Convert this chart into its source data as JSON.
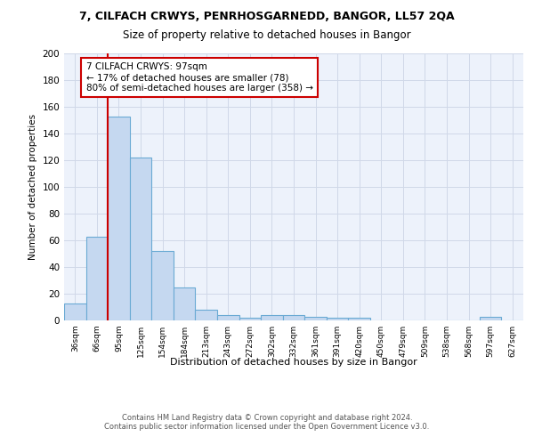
{
  "title1": "7, CILFACH CRWYS, PENRHOSGARNEDD, BANGOR, LL57 2QA",
  "title2": "Size of property relative to detached houses in Bangor",
  "xlabel": "Distribution of detached houses by size in Bangor",
  "ylabel": "Number of detached properties",
  "bin_labels": [
    "36sqm",
    "66sqm",
    "95sqm",
    "125sqm",
    "154sqm",
    "184sqm",
    "213sqm",
    "243sqm",
    "272sqm",
    "302sqm",
    "332sqm",
    "361sqm",
    "391sqm",
    "420sqm",
    "450sqm",
    "479sqm",
    "509sqm",
    "538sqm",
    "568sqm",
    "597sqm",
    "627sqm"
  ],
  "bin_values": [
    13,
    63,
    153,
    122,
    52,
    25,
    8,
    4,
    2,
    4,
    4,
    3,
    2,
    2,
    0,
    0,
    0,
    0,
    0,
    3,
    0
  ],
  "bar_color": "#c5d8f0",
  "bar_edge_color": "#6aaad4",
  "red_line_index": 2,
  "annotation_text": "7 CILFACH CRWYS: 97sqm\n← 17% of detached houses are smaller (78)\n80% of semi-detached houses are larger (358) →",
  "annotation_box_color": "white",
  "annotation_box_edge_color": "#cc0000",
  "footer": "Contains HM Land Registry data © Crown copyright and database right 2024.\nContains public sector information licensed under the Open Government Licence v3.0.",
  "ylim": [
    0,
    200
  ],
  "yticks": [
    0,
    20,
    40,
    60,
    80,
    100,
    120,
    140,
    160,
    180,
    200
  ],
  "background_color": "#edf2fb",
  "grid_color": "#d0d8e8"
}
